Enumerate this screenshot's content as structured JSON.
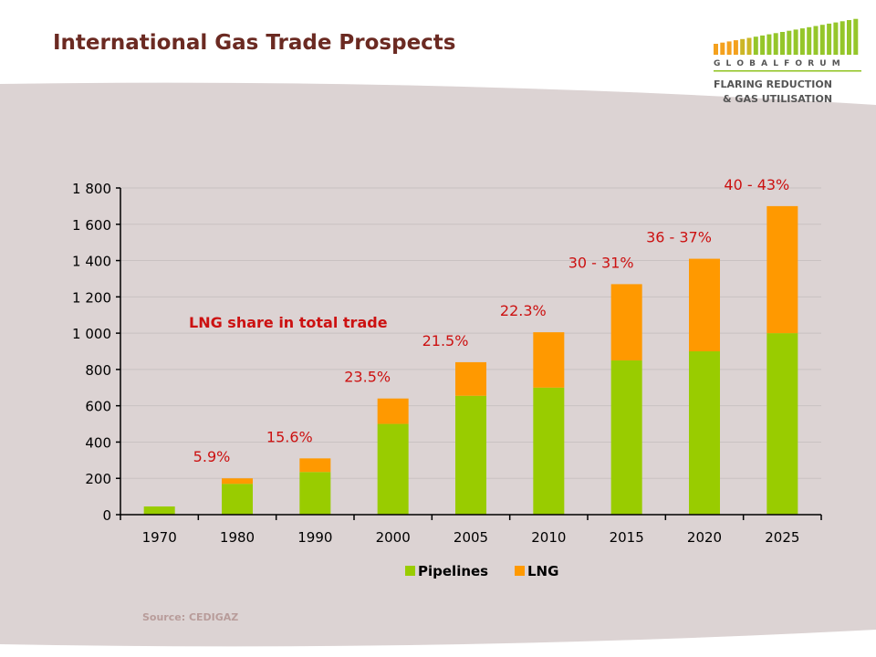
{
  "slide": {
    "title": "International Gas Trade Prospects",
    "source": "Source: CEDIGAZ",
    "colors": {
      "background_band": "#dcd3d3",
      "title": "#6b2a22",
      "annotation": "#cc1111"
    }
  },
  "logo": {
    "line1": "G L O B A L   F O R U M",
    "line2": "FLARING REDUCTION",
    "line3": "& GAS UTILISATION",
    "colors": {
      "green": "#8fc31f",
      "orange": "#f39c12",
      "text": "#555555",
      "ampersand": "#e88a1a"
    }
  },
  "chart_data": {
    "type": "bar",
    "stacked": true,
    "categories": [
      "1970",
      "1980",
      "1990",
      "2000",
      "2005",
      "2010",
      "2015",
      "2020",
      "2025"
    ],
    "series": [
      {
        "name": "Pipelines",
        "color": "#99cc00",
        "values": [
          45,
          170,
          235,
          500,
          655,
          700,
          850,
          900,
          1000
        ]
      },
      {
        "name": "LNG",
        "color": "#ff9900",
        "values": [
          0,
          30,
          75,
          140,
          185,
          305,
          420,
          510,
          700
        ]
      }
    ],
    "ylim": [
      0,
      1800
    ],
    "yticks": [
      0,
      200,
      400,
      600,
      800,
      1000,
      1200,
      1400,
      1600,
      1800
    ],
    "ytick_labels": [
      "0",
      "200",
      "400",
      "600",
      "800",
      "1 000",
      "1 200",
      "1 400",
      "1 600",
      "1 800"
    ],
    "grid": true,
    "legend_position": "bottom",
    "share_labels": [
      "5.9%",
      "15.6%",
      "23.5%",
      "21.5%",
      "22.3%",
      "30 - 31%",
      "36 - 37%",
      "40 - 43%"
    ],
    "annotation": "LNG share in total trade",
    "xlabel": "",
    "ylabel": ""
  }
}
